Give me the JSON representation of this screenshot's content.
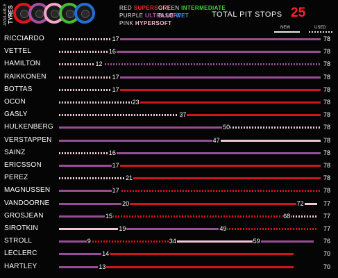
{
  "header": {
    "tyre_label_line1": "AVAILABLE",
    "tyre_label_line2": "TYRES",
    "tyres": [
      {
        "name": "supersoft-tyre",
        "color": "#e4111c"
      },
      {
        "name": "ultrasoft-tyre",
        "color": "#a54fa0"
      },
      {
        "name": "hypersoft-tyre",
        "color": "#f4a6c8"
      },
      {
        "name": "intermediate-tyre",
        "color": "#3fbf2f"
      },
      {
        "name": "wet-tyre",
        "color": "#1f6fd6"
      }
    ],
    "legend": [
      {
        "name": "legend-supersoft",
        "word": "RED",
        "compound": "SUPERSOFT",
        "color": "#ff2a2a"
      },
      {
        "name": "legend-ultrasoft",
        "word": "PURPLE",
        "compound": "ULTRASOFT",
        "color": "#b65cb4"
      },
      {
        "name": "legend-hypersoft",
        "word": "PINK",
        "compound": "HYPERSOFT",
        "color": "#f7b8d3"
      },
      {
        "name": "legend-intermediate",
        "word": "GREEN",
        "compound": "INTERMEDIATE",
        "color": "#43d43a"
      },
      {
        "name": "legend-wet",
        "word": "BLUE",
        "compound": "WET",
        "color": "#3d8ef0"
      }
    ],
    "pit_title": "TOTAL PIT STOPS",
    "pit_value": "25",
    "key_new": "NEW",
    "key_used": "USED"
  },
  "colors": {
    "supersoft": "#d4141d",
    "ultrasoft": "#9a4d97",
    "hypersoft": "#f1c6d7"
  },
  "race": {
    "total_laps": 78,
    "drivers": [
      {
        "name": "RICCIARDO",
        "total": "78",
        "stints": [
          {
            "end": 17,
            "c": "hypersoft",
            "used": true,
            "label": "17"
          },
          {
            "end": 78,
            "c": "ultrasoft",
            "used": false
          }
        ]
      },
      {
        "name": "VETTEL",
        "total": "78",
        "stints": [
          {
            "end": 16,
            "c": "hypersoft",
            "used": true,
            "label": "16"
          },
          {
            "end": 78,
            "c": "ultrasoft",
            "used": false
          }
        ]
      },
      {
        "name": "HAMILTON",
        "total": "78",
        "stints": [
          {
            "end": 12,
            "c": "hypersoft",
            "used": true,
            "label": "12"
          },
          {
            "end": 78,
            "c": "ultrasoft",
            "used": true
          }
        ]
      },
      {
        "name": "RAIKKONEN",
        "total": "78",
        "stints": [
          {
            "end": 17,
            "c": "hypersoft",
            "used": true,
            "label": "17"
          },
          {
            "end": 78,
            "c": "ultrasoft",
            "used": false
          }
        ]
      },
      {
        "name": "BOTTAS",
        "total": "78",
        "stints": [
          {
            "end": 17,
            "c": "hypersoft",
            "used": true,
            "label": "17"
          },
          {
            "end": 78,
            "c": "supersoft",
            "used": false
          }
        ]
      },
      {
        "name": "OCON",
        "total": "78",
        "stints": [
          {
            "end": 23,
            "c": "hypersoft",
            "used": true,
            "label": "23"
          },
          {
            "end": 78,
            "c": "supersoft",
            "used": false
          }
        ]
      },
      {
        "name": "GASLY",
        "total": "78",
        "stints": [
          {
            "end": 37,
            "c": "hypersoft",
            "used": true,
            "label": "37"
          },
          {
            "end": 78,
            "c": "supersoft",
            "used": false
          }
        ]
      },
      {
        "name": "HULKENBERG",
        "total": "78",
        "stints": [
          {
            "end": 50,
            "c": "ultrasoft",
            "used": false,
            "label": "50"
          },
          {
            "end": 78,
            "c": "hypersoft",
            "used": true
          }
        ]
      },
      {
        "name": "VERSTAPPEN",
        "total": "78",
        "stints": [
          {
            "end": 47,
            "c": "ultrasoft",
            "used": false,
            "label": "47"
          },
          {
            "end": 78,
            "c": "hypersoft",
            "used": false
          }
        ]
      },
      {
        "name": "SAINZ",
        "total": "78",
        "stints": [
          {
            "end": 16,
            "c": "hypersoft",
            "used": true,
            "label": "16"
          },
          {
            "end": 78,
            "c": "ultrasoft",
            "used": false
          }
        ]
      },
      {
        "name": "ERICSSON",
        "total": "78",
        "stints": [
          {
            "end": 17,
            "c": "ultrasoft",
            "used": false,
            "label": "17"
          },
          {
            "end": 78,
            "c": "supersoft",
            "used": false
          }
        ]
      },
      {
        "name": "PEREZ",
        "total": "78",
        "stints": [
          {
            "end": 21,
            "c": "hypersoft",
            "used": true,
            "label": "21"
          },
          {
            "end": 78,
            "c": "supersoft",
            "used": false
          }
        ]
      },
      {
        "name": "MAGNUSSEN",
        "total": "78",
        "stints": [
          {
            "end": 17,
            "c": "ultrasoft",
            "used": false,
            "label": "17"
          },
          {
            "end": 78,
            "c": "supersoft",
            "used": true
          }
        ]
      },
      {
        "name": "VANDOORNE",
        "total": "77",
        "stints": [
          {
            "end": 20,
            "c": "ultrasoft",
            "used": false,
            "label": "20"
          },
          {
            "end": 72,
            "c": "supersoft",
            "used": false,
            "label": "72"
          },
          {
            "end": 77,
            "c": "hypersoft",
            "used": false
          }
        ]
      },
      {
        "name": "GROSJEAN",
        "total": "77",
        "stints": [
          {
            "end": 15,
            "c": "ultrasoft",
            "used": false,
            "label": "15"
          },
          {
            "end": 68,
            "c": "supersoft",
            "used": true,
            "label": "68"
          },
          {
            "end": 77,
            "c": "hypersoft",
            "used": true
          }
        ]
      },
      {
        "name": "SIROTKIN",
        "total": "77",
        "stints": [
          {
            "end": 19,
            "c": "hypersoft",
            "used": false,
            "label": "19"
          },
          {
            "end": 49,
            "c": "ultrasoft",
            "used": false,
            "label": "49"
          },
          {
            "end": 77,
            "c": "supersoft",
            "used": true
          }
        ]
      },
      {
        "name": "STROLL",
        "total": "76",
        "stints": [
          {
            "end": 9,
            "c": "ultrasoft",
            "used": false,
            "label": "9"
          },
          {
            "end": 34,
            "c": "supersoft",
            "used": true,
            "label": "34"
          },
          {
            "end": 59,
            "c": "hypersoft",
            "used": false,
            "label": "59"
          },
          {
            "end": 76,
            "c": "ultrasoft",
            "used": false
          }
        ]
      },
      {
        "name": "LECLERC",
        "total": "70",
        "stints": [
          {
            "end": 14,
            "c": "ultrasoft",
            "used": false,
            "label": "14"
          },
          {
            "end": 70,
            "c": "supersoft",
            "used": false
          }
        ]
      },
      {
        "name": "HARTLEY",
        "total": "70",
        "stints": [
          {
            "end": 13,
            "c": "ultrasoft",
            "used": false,
            "label": "13"
          },
          {
            "end": 70,
            "c": "supersoft",
            "used": false
          }
        ]
      }
    ]
  }
}
